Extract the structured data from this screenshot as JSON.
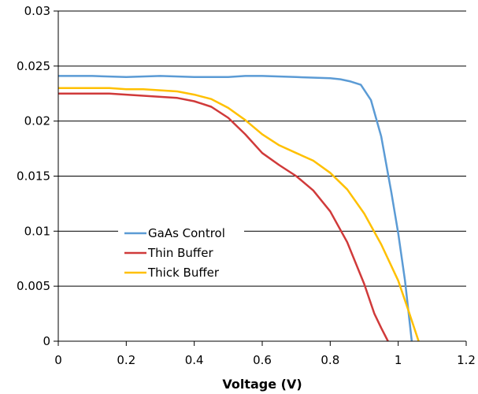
{
  "chart_data": {
    "type": "line",
    "title": "",
    "xlabel": "Voltage (V)",
    "ylabel": "",
    "xlim": [
      0,
      1.2
    ],
    "ylim": [
      0,
      0.03
    ],
    "xticks": [
      "0",
      "0.2",
      "0.4",
      "0.6",
      "0.8",
      "1",
      "1.2"
    ],
    "yticks": [
      "0",
      "0.005",
      "0.01",
      "0.015",
      "0.02",
      "0.025",
      "0.03"
    ],
    "grid": "horizontal",
    "legend_position": "center-left",
    "series": [
      {
        "name": "GaAs Control",
        "color": "#5b9bd5",
        "x": [
          0,
          0.05,
          0.1,
          0.2,
          0.3,
          0.4,
          0.5,
          0.55,
          0.6,
          0.7,
          0.8,
          0.83,
          0.86,
          0.89,
          0.92,
          0.95,
          0.98,
          1.0,
          1.02,
          1.04
        ],
        "y": [
          0.0241,
          0.0241,
          0.0241,
          0.024,
          0.0241,
          0.024,
          0.024,
          0.0241,
          0.0241,
          0.024,
          0.0239,
          0.0238,
          0.0236,
          0.0233,
          0.0219,
          0.0186,
          0.0135,
          0.0098,
          0.0055,
          0.0
        ]
      },
      {
        "name": "Thin Buffer",
        "color": "#d03a3a",
        "x": [
          0,
          0.05,
          0.1,
          0.15,
          0.2,
          0.25,
          0.3,
          0.35,
          0.4,
          0.45,
          0.5,
          0.55,
          0.6,
          0.65,
          0.7,
          0.75,
          0.8,
          0.85,
          0.9,
          0.93,
          0.95,
          0.97
        ],
        "y": [
          0.0225,
          0.0225,
          0.0225,
          0.0225,
          0.0224,
          0.0223,
          0.0222,
          0.0221,
          0.0218,
          0.0213,
          0.0203,
          0.0188,
          0.0171,
          0.016,
          0.015,
          0.0137,
          0.0118,
          0.009,
          0.0052,
          0.0025,
          0.0012,
          0.0
        ]
      },
      {
        "name": "Thick Buffer",
        "color": "#ffc000",
        "x": [
          0,
          0.05,
          0.1,
          0.15,
          0.2,
          0.25,
          0.3,
          0.35,
          0.4,
          0.45,
          0.5,
          0.55,
          0.6,
          0.65,
          0.7,
          0.75,
          0.8,
          0.85,
          0.9,
          0.95,
          1.0,
          1.03,
          1.06
        ],
        "y": [
          0.023,
          0.023,
          0.023,
          0.023,
          0.0229,
          0.0229,
          0.0228,
          0.0227,
          0.0224,
          0.022,
          0.0212,
          0.0201,
          0.0188,
          0.0178,
          0.0171,
          0.0164,
          0.0153,
          0.0138,
          0.0116,
          0.0088,
          0.0055,
          0.0028,
          0.0
        ]
      }
    ]
  }
}
